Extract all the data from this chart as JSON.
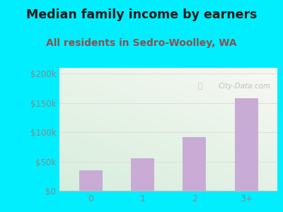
{
  "categories": [
    "0",
    "1",
    "2",
    "3+"
  ],
  "values": [
    35000,
    55000,
    92000,
    158000
  ],
  "bar_color": "#c8acd6",
  "title": "Median family income by earners",
  "subtitle": "All residents in Sedro-Woolley, WA",
  "title_fontsize": 12.5,
  "subtitle_fontsize": 10,
  "title_color": "#1a1a1a",
  "subtitle_color": "#8b5050",
  "outer_bg": "#00eeff",
  "plot_bg_topleft": "#d6eedd",
  "plot_bg_bottomright": "#f8f8f2",
  "yticks": [
    0,
    50000,
    100000,
    150000,
    200000
  ],
  "ytick_labels": [
    "$0",
    "$50k",
    "$100k",
    "$150k",
    "$200k"
  ],
  "ylim": [
    0,
    210000
  ],
  "watermark": "City-Data.com",
  "tick_color": "#999999",
  "tick_label_color": "#888888",
  "grid_color": "#dddddd",
  "bar_width": 0.45
}
